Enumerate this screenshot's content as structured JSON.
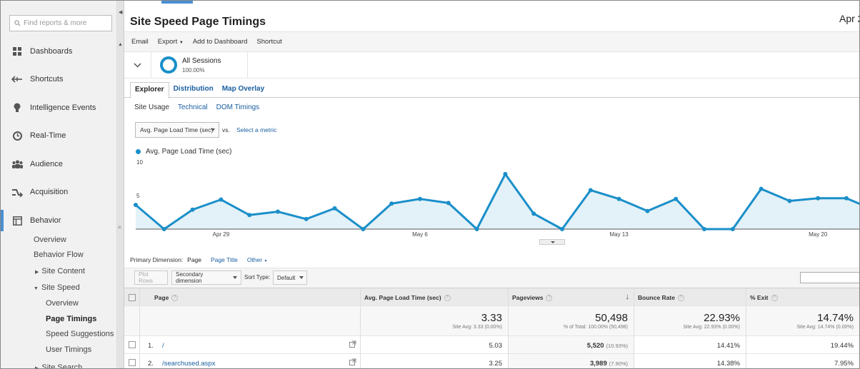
{
  "sidebar": {
    "search_placeholder": "Find reports & more",
    "nav": [
      {
        "label": "Dashboards",
        "icon": "dashboards-icon"
      },
      {
        "label": "Shortcuts",
        "icon": "shortcuts-icon"
      },
      {
        "label": "Intelligence Events",
        "icon": "lightbulb-icon"
      },
      {
        "label": "Real-Time",
        "icon": "clock-icon"
      },
      {
        "label": "Audience",
        "icon": "audience-icon"
      },
      {
        "label": "Acquisition",
        "icon": "acquisition-icon"
      },
      {
        "label": "Behavior",
        "icon": "behavior-icon"
      }
    ],
    "behavior_sub": {
      "overview": "Overview",
      "behavior_flow": "Behavior Flow",
      "site_content": "Site Content",
      "site_speed": "Site Speed",
      "speed_overview": "Overview",
      "page_timings": "Page Timings",
      "speed_suggestions": "Speed Suggestions",
      "user_timings": "User Timings",
      "site_search": "Site Search"
    }
  },
  "header": {
    "title": "Site Speed Page Timings",
    "date_range": "Apr 2"
  },
  "toolbar": {
    "email": "Email",
    "export": "Export",
    "add_to_dashboard": "Add to Dashboard",
    "shortcut": "Shortcut"
  },
  "segment": {
    "name": "All Sessions",
    "percent": "100.00%"
  },
  "tabs": [
    "Explorer",
    "Distribution",
    "Map Overlay"
  ],
  "subtabs": [
    "Site Usage",
    "Technical",
    "DOM Timings"
  ],
  "metric": {
    "selected": "Avg. Page Load Time (sec)",
    "vs": "vs.",
    "select_metric": "Select a metric"
  },
  "chart_data": {
    "type": "area",
    "series": [
      {
        "name": "Avg. Page Load Time (sec)",
        "values": [
          3.6,
          0,
          2.9,
          4.4,
          2.1,
          2.6,
          1.5,
          3.1,
          0,
          3.8,
          4.5,
          3.9,
          0,
          8.2,
          2.3,
          0,
          5.8,
          4.5,
          2.7,
          4.5,
          0,
          0,
          6,
          4.2,
          4.6,
          4.6,
          2.8
        ],
        "color": "#1a8fc9"
      }
    ],
    "x_tick_labels": [
      "Apr 29",
      "May 6",
      "May 13",
      "May 20"
    ],
    "x_tick_indices": [
      3,
      10,
      17,
      24
    ],
    "y_ticks": [
      10,
      5
    ],
    "ylim": [
      0,
      10
    ],
    "grid": false
  },
  "primary_dimension": {
    "label": "Primary Dimension:",
    "active": "Page",
    "options": [
      "Page Title",
      "Other"
    ]
  },
  "table_toolbar": {
    "plot_rows": "Plot Rows",
    "secondary_dimension": "Secondary dimension",
    "sort_type_label": "Sort Type:",
    "sort_type_value": "Default"
  },
  "table": {
    "columns": [
      "Page",
      "Avg. Page Load Time (sec)",
      "Pageviews",
      "Bounce Rate",
      "% Exit"
    ],
    "totals": [
      {
        "value": "3.33",
        "sub": "Site Avg: 3.33 (0.00%)"
      },
      {
        "value": "50,498",
        "sub": "% of Total: 100.00% (50,498)"
      },
      {
        "value": "22.93%",
        "sub": "Site Avg: 22.93% (0.00%)"
      },
      {
        "value": "14.74%",
        "sub": "Site Avg: 14.74% (0.00%)"
      }
    ],
    "rows": [
      {
        "num": "1.",
        "page": "/",
        "load": "5.03",
        "pageviews": "5,520",
        "pv_pct": "(10.93%)",
        "bounce": "14.41%",
        "exit": "19.44%"
      },
      {
        "num": "2.",
        "page": "/searchused.aspx",
        "load": "3.25",
        "pageviews": "3,989",
        "pv_pct": "(7.90%)",
        "bounce": "14.38%",
        "exit": "7.95%"
      }
    ]
  }
}
